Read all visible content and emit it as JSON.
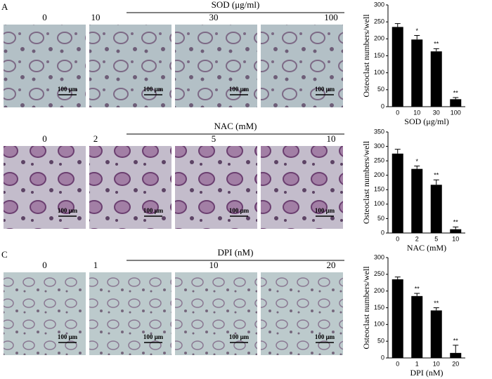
{
  "panels": [
    {
      "letter": "A",
      "treatment": "SOD (μg/ml)",
      "doses": [
        "0",
        "10",
        "30",
        "100"
      ],
      "scale_bar": "100 μm"
    },
    {
      "treatment": "NAC (mM)",
      "doses": [
        "0",
        "2",
        "5",
        "10"
      ],
      "scale_bar": "100 μm"
    },
    {
      "letter": "C",
      "treatment": "DPI (nM)",
      "doses": [
        "0",
        "1",
        "10",
        "20"
      ],
      "scale_bar": "100 μm"
    }
  ],
  "chart_data": [
    {
      "type": "bar",
      "ylabel": "Osteoclast numbers/well",
      "xlabel": "SOD (μg/ml)",
      "categories": [
        "0",
        "10",
        "30",
        "100"
      ],
      "values": [
        235,
        198,
        163,
        22
      ],
      "errors": [
        10,
        12,
        8,
        5
      ],
      "annotations": [
        null,
        "*",
        "**",
        "**"
      ],
      "color": "#000000",
      "ylim": [
        0,
        300
      ],
      "yticks": [
        0,
        50,
        100,
        150,
        200,
        250,
        300
      ]
    },
    {
      "type": "bar",
      "ylabel": "Osteoclast numbers/well",
      "xlabel": "NAC (mM)",
      "categories": [
        "0",
        "2",
        "5",
        "10"
      ],
      "values": [
        275,
        222,
        167,
        13
      ],
      "errors": [
        15,
        10,
        17,
        8
      ],
      "annotations": [
        null,
        "*",
        "**",
        "**"
      ],
      "color": "#000000",
      "ylim": [
        0,
        350
      ],
      "yticks": [
        0,
        50,
        100,
        150,
        200,
        250,
        300,
        350
      ]
    },
    {
      "type": "bar",
      "ylabel": "Osteoclast numbers/well",
      "xlabel": "DPI (nM)",
      "categories": [
        "0",
        "1",
        "10",
        "20"
      ],
      "values": [
        235,
        185,
        142,
        15
      ],
      "errors": [
        7,
        8,
        8,
        23
      ],
      "annotations": [
        null,
        "**",
        "**",
        "**"
      ],
      "color": "#000000",
      "ylim": [
        0,
        300
      ],
      "yticks": [
        0,
        50,
        100,
        150,
        200,
        250,
        300
      ]
    }
  ]
}
